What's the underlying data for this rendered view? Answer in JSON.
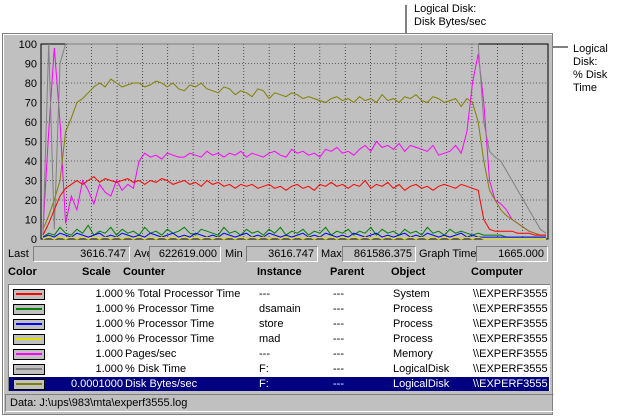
{
  "callouts": [
    {
      "line1": "Logical Disk:",
      "line2": "Disk Bytes/sec"
    },
    {
      "line1": "Logical Disk:",
      "line2": "% Disk Time"
    }
  ],
  "chart_data": {
    "type": "line",
    "yticks": [
      "100",
      "90",
      "80",
      "70",
      "60",
      "50",
      "40",
      "30",
      "20",
      "10",
      "0"
    ],
    "ylim": [
      0,
      100
    ],
    "grid": true,
    "series": [
      {
        "color": "#ff00ff",
        "values": [
          5,
          55,
          98,
          60,
          8,
          22,
          15,
          30,
          25,
          18,
          28,
          24,
          22,
          30,
          25,
          28,
          26,
          40,
          44,
          42,
          43,
          41,
          44,
          43,
          42,
          42,
          44,
          43,
          42,
          45,
          43,
          44,
          42,
          44,
          43,
          45,
          42,
          44,
          43,
          42,
          44,
          45,
          43,
          42,
          46,
          44,
          45,
          43,
          44,
          42,
          46,
          45,
          47,
          44,
          45,
          43,
          46,
          48,
          45,
          50,
          47,
          48,
          46,
          49,
          45,
          48,
          47,
          46,
          45,
          48,
          43,
          44,
          45,
          48,
          44,
          55,
          80,
          95,
          70,
          30,
          20,
          18,
          15,
          10,
          8,
          6,
          4,
          3,
          2,
          2
        ]
      },
      {
        "color": "#808000",
        "values": [
          5,
          12,
          20,
          30,
          55,
          62,
          70,
          72,
          75,
          78,
          80,
          78,
          82,
          80,
          78,
          79,
          80,
          80,
          78,
          79,
          81,
          80,
          78,
          80,
          77,
          76,
          79,
          78,
          80,
          77,
          76,
          75,
          78,
          77,
          74,
          76,
          75,
          73,
          77,
          76,
          72,
          75,
          74,
          73,
          75,
          74,
          72,
          73,
          72,
          71,
          70,
          72,
          73,
          71,
          72,
          70,
          73,
          71,
          72,
          70,
          74,
          71,
          72,
          70,
          73,
          72,
          74,
          71,
          70,
          73,
          72,
          70,
          71,
          72,
          68,
          72,
          70,
          60,
          40,
          25,
          20,
          15,
          12,
          10,
          8,
          6,
          4,
          3,
          2,
          2
        ]
      },
      {
        "color": "#808080",
        "values": [
          2,
          100,
          5,
          90,
          100,
          100,
          100,
          100,
          100,
          100,
          100,
          100,
          100,
          100,
          100,
          100,
          100,
          100,
          100,
          100,
          100,
          100,
          100,
          100,
          100,
          100,
          100,
          100,
          100,
          100,
          100,
          100,
          100,
          100,
          100,
          100,
          100,
          100,
          100,
          100,
          100,
          100,
          100,
          100,
          100,
          100,
          100,
          100,
          100,
          100,
          100,
          100,
          100,
          100,
          100,
          100,
          100,
          100,
          100,
          100,
          100,
          100,
          100,
          100,
          100,
          100,
          100,
          100,
          100,
          100,
          100,
          100,
          100,
          100,
          100,
          100,
          100,
          100,
          60,
          45,
          42,
          40,
          35,
          30,
          25,
          20,
          15,
          10,
          5,
          3
        ]
      },
      {
        "color": "#ff0000",
        "values": [
          2,
          8,
          15,
          22,
          26,
          28,
          30,
          28,
          30,
          32,
          29,
          31,
          30,
          29,
          30,
          31,
          29,
          30,
          28,
          30,
          29,
          31,
          30,
          28,
          29,
          30,
          28,
          29,
          27,
          30,
          28,
          29,
          27,
          28,
          26,
          28,
          27,
          28,
          26,
          27,
          28,
          26,
          27,
          25,
          27,
          28,
          26,
          27,
          25,
          28,
          27,
          29,
          27,
          28,
          26,
          28,
          27,
          30,
          26,
          28,
          27,
          29,
          26,
          28,
          25,
          27,
          28,
          26,
          27,
          25,
          27,
          28,
          27,
          26,
          28,
          27,
          26,
          25,
          10,
          5,
          4,
          4,
          4,
          4,
          3,
          3,
          3,
          2,
          2,
          2
        ]
      },
      {
        "color": "#008000",
        "values": [
          1,
          3,
          2,
          6,
          3,
          2,
          5,
          3,
          7,
          2,
          4,
          3,
          6,
          2,
          5,
          3,
          4,
          2,
          6,
          3,
          4,
          2,
          5,
          3,
          4,
          6,
          3,
          2,
          5,
          4,
          3,
          2,
          6,
          3,
          4,
          2,
          5,
          3,
          4,
          2,
          5,
          3,
          6,
          2,
          4,
          3,
          5,
          2,
          4,
          3,
          6,
          2,
          4,
          3,
          5,
          2,
          4,
          3,
          6,
          2,
          5,
          3,
          4,
          2,
          5,
          3,
          4,
          2,
          6,
          3,
          4,
          2,
          5,
          3,
          4,
          3,
          2,
          3,
          2,
          2,
          2,
          2,
          1,
          1,
          1,
          1,
          1,
          1,
          1,
          1
        ]
      },
      {
        "color": "#0000ff",
        "values": [
          1,
          2,
          1,
          3,
          2,
          1,
          3,
          2,
          1,
          2,
          3,
          1,
          2,
          1,
          3,
          2,
          1,
          2,
          1,
          3,
          2,
          1,
          2,
          3,
          1,
          2,
          1,
          3,
          2,
          1,
          2,
          1,
          3,
          2,
          1,
          2,
          3,
          1,
          2,
          1,
          3,
          2,
          1,
          2,
          1,
          2,
          3,
          1,
          2,
          1,
          3,
          2,
          1,
          2,
          1,
          3,
          2,
          1,
          2,
          3,
          1,
          2,
          1,
          2,
          3,
          1,
          2,
          1,
          3,
          2,
          1,
          2,
          1,
          2,
          3,
          1,
          2,
          1,
          1,
          1,
          1,
          1,
          1,
          1,
          1,
          1,
          1,
          1,
          1,
          1
        ]
      },
      {
        "color": "#e0e000",
        "values": [
          0,
          1,
          0,
          1,
          0,
          1,
          0,
          1,
          0,
          1,
          0,
          1,
          0,
          1,
          0,
          1,
          0,
          1,
          0,
          1,
          0,
          1,
          0,
          1,
          0,
          1,
          0,
          1,
          0,
          1,
          0,
          1,
          0,
          1,
          0,
          1,
          0,
          1,
          0,
          1,
          0,
          1,
          0,
          1,
          0,
          1,
          0,
          1,
          0,
          1,
          0,
          1,
          0,
          1,
          0,
          1,
          0,
          1,
          0,
          1,
          0,
          1,
          0,
          1,
          0,
          1,
          0,
          1,
          0,
          1,
          0,
          1,
          0,
          1,
          0,
          1,
          0,
          1,
          0,
          0,
          0,
          0,
          0,
          0,
          0,
          0,
          0,
          0,
          0,
          0
        ]
      }
    ]
  },
  "stats": {
    "last_label": "Last",
    "last_value": "3616.747",
    "avg_label": "Average",
    "avg_value": "622619.000",
    "min_label": "Min",
    "min_value": "3616.747",
    "max_label": "Max",
    "max_value": "861586.375",
    "time_label": "Graph Time",
    "time_value": "1665.000"
  },
  "legend_header": {
    "color": "Color",
    "scale": "Scale",
    "counter": "Counter",
    "instance": "Instance",
    "parent": "Parent",
    "object": "Object",
    "computer": "Computer"
  },
  "legend_rows": [
    {
      "color": "#ff0000",
      "scale": "1.000",
      "counter": "% Total Processor Time",
      "instance": "---",
      "parent": "---",
      "object": "System",
      "computer": "\\\\EXPERF3555"
    },
    {
      "color": "#008000",
      "scale": "1.000",
      "counter": "% Processor Time",
      "instance": "dsamain",
      "parent": "---",
      "object": "Process",
      "computer": "\\\\EXPERF3555"
    },
    {
      "color": "#0000ff",
      "scale": "1.000",
      "counter": "% Processor Time",
      "instance": "store",
      "parent": "---",
      "object": "Process",
      "computer": "\\\\EXPERF3555"
    },
    {
      "color": "#e0e000",
      "scale": "1.000",
      "counter": "% Processor Time",
      "instance": "mad",
      "parent": "---",
      "object": "Process",
      "computer": "\\\\EXPERF3555"
    },
    {
      "color": "#ff00ff",
      "scale": "1.000",
      "counter": "Pages/sec",
      "instance": "---",
      "parent": "---",
      "object": "Memory",
      "computer": "\\\\EXPERF3555"
    },
    {
      "color": "#808080",
      "scale": "1.000",
      "counter": "% Disk Time",
      "instance": "F:",
      "parent": "---",
      "object": "LogicalDisk",
      "computer": "\\\\EXPERF3555"
    },
    {
      "color": "#808000",
      "scale": "0.0001000",
      "counter": "Disk Bytes/sec",
      "instance": "F:",
      "parent": "---",
      "object": "LogicalDisk",
      "computer": "\\\\EXPERF3555",
      "selected": true
    }
  ],
  "status": {
    "text": "Data: J:\\ups\\983\\mta\\experf3555.log"
  }
}
